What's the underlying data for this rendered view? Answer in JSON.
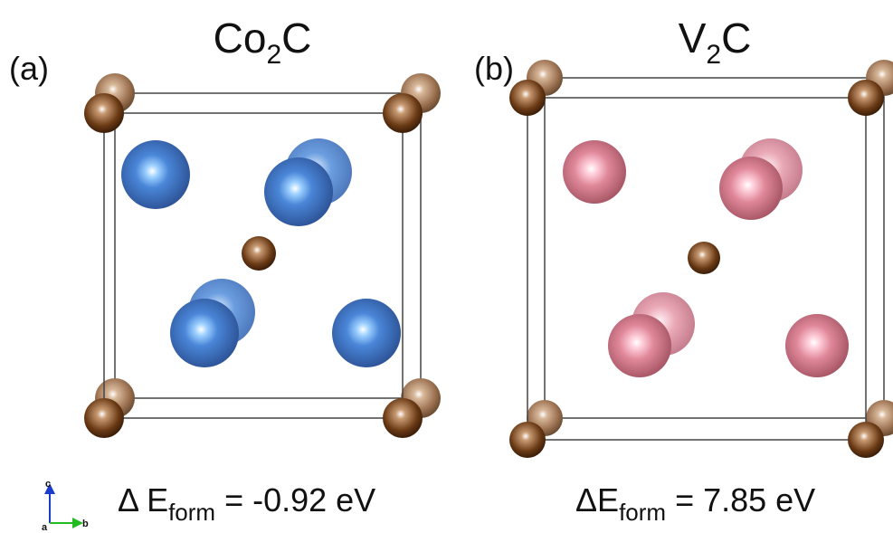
{
  "panels": [
    {
      "label": "(a)",
      "formula": {
        "element": "Co",
        "subscript": "2",
        "rest": "C"
      },
      "energy": {
        "symbol": "Δ E",
        "subscript": "form",
        "value": " = -0.92 eV"
      }
    },
    {
      "label": "(b)",
      "formula": {
        "element": "V",
        "subscript": "2",
        "rest": "C"
      },
      "energy": {
        "symbol": "ΔE",
        "subscript": "form",
        "value": " = 7.85 eV"
      }
    }
  ],
  "axes": {
    "c": "c",
    "a": "a",
    "b": "b"
  }
}
